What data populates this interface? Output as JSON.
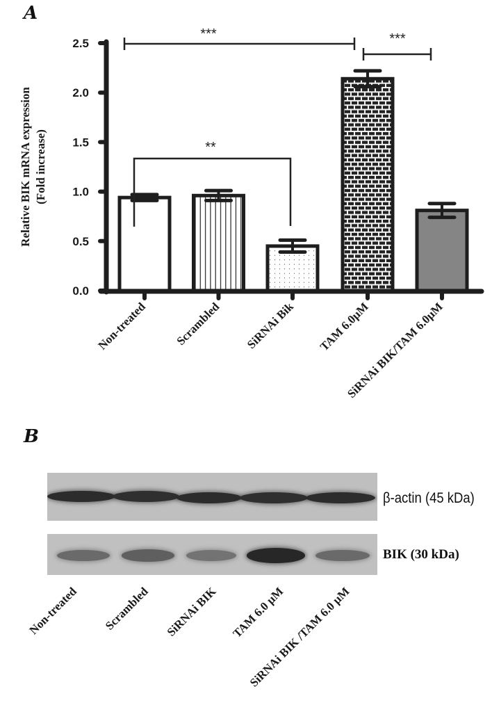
{
  "panels": {
    "a_label": "A",
    "b_label": "B"
  },
  "chart_data": {
    "type": "bar",
    "title": "",
    "categories": [
      "Non-treated",
      "Scrambled",
      "SiRNAi Bik",
      "TAM 6.0µM",
      "SiRNAi BIK/TAM 6.0µM"
    ],
    "values": [
      0.94,
      0.96,
      0.45,
      2.14,
      0.81
    ],
    "error_bars": [
      0.03,
      0.05,
      0.06,
      0.08,
      0.07
    ],
    "patterns": [
      "white",
      "vertical-lines",
      "dots",
      "brick",
      "gray"
    ],
    "xlabel": "",
    "ylabel": "Relative BIK mRNA expression",
    "ylabel_line2": "(Fold increase)",
    "ylim": [
      0,
      2.5
    ],
    "yticks": [
      "0.0",
      "0.5",
      "1.0",
      "1.5",
      "2.0",
      "2.5"
    ],
    "grid": false,
    "significance": [
      {
        "from": "Non-treated",
        "to": "TAM 6.0µM",
        "label": "***"
      },
      {
        "from": "TAM 6.0µM",
        "to": "SiRNAi BIK/TAM 6.0µM",
        "label": "***"
      },
      {
        "from": "Non-treated",
        "to": "SiRNAi Bik",
        "label": "**"
      }
    ]
  },
  "western_blot": {
    "rows": [
      {
        "label": "β-actin (45 kDa)",
        "intensities": [
          0.92,
          0.9,
          0.92,
          0.9,
          0.92
        ]
      },
      {
        "label": "BIK (30 kDa)",
        "intensities": [
          0.55,
          0.62,
          0.5,
          0.95,
          0.55
        ]
      }
    ],
    "lanes": [
      "Non-treated",
      "Scrambled",
      "SiRNAi BIK",
      "TAM 6.0 µM",
      "SiRNAi BIK /TAM 6.0 µM"
    ]
  }
}
